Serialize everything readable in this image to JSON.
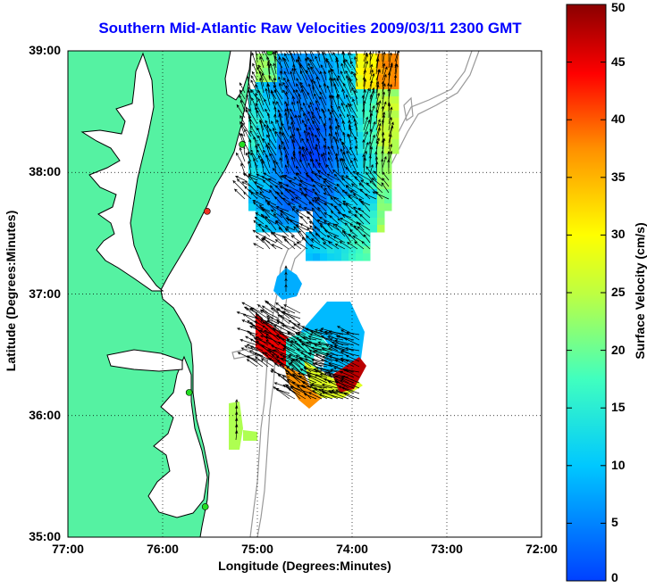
{
  "title": "Southern Mid-Atlantic Raw Velocities 2009/03/11 2300 GMT",
  "xlabel": "Longitude (Degrees:Minutes)",
  "ylabel": "Latitude (Degrees:Minutes)",
  "colorbar": {
    "label": "Surface Velocity (cm/s)",
    "min": 0,
    "max": 50,
    "ticks": [
      "0",
      "5",
      "10",
      "15",
      "20",
      "25",
      "30",
      "35",
      "40",
      "45",
      "50"
    ]
  },
  "axes": {
    "lon_range": [
      -77,
      -72
    ],
    "lat_range": [
      35,
      39
    ],
    "x_ticks": [
      "77:00",
      "76:00",
      "75:00",
      "74:00",
      "73:00",
      "72:00"
    ],
    "y_ticks": [
      "39:00",
      "38:00",
      "37:00",
      "36:00",
      "35:00"
    ],
    "grid": "dotted"
  },
  "colors": {
    "land": "#55f2a2",
    "coastline": "#000000",
    "bathymetry": "#999999",
    "title": "#0000ff",
    "station": "#22dd22",
    "station_alt": "#ee3322"
  },
  "stations": [
    {
      "lon": -74.87,
      "lat": 38.99,
      "type": "normal"
    },
    {
      "lon": -75.16,
      "lat": 38.23,
      "type": "normal"
    },
    {
      "lon": -75.53,
      "lat": 37.68,
      "type": "alt"
    },
    {
      "lon": -75.72,
      "lat": 36.19,
      "type": "normal"
    },
    {
      "lon": -75.55,
      "lat": 35.25,
      "type": "normal"
    }
  ],
  "velocity_regions": [
    {
      "name": "north",
      "lon": [
        -75.1,
        -73.6
      ],
      "lat": [
        37.55,
        38.97
      ],
      "speed_range": [
        8,
        40
      ],
      "direction": "north-northwest"
    },
    {
      "name": "south",
      "lon": [
        -74.95,
        -73.9
      ],
      "lat": [
        36.2,
        36.95
      ],
      "speed_range": [
        5,
        48
      ],
      "direction": "west-northwest"
    }
  ]
}
